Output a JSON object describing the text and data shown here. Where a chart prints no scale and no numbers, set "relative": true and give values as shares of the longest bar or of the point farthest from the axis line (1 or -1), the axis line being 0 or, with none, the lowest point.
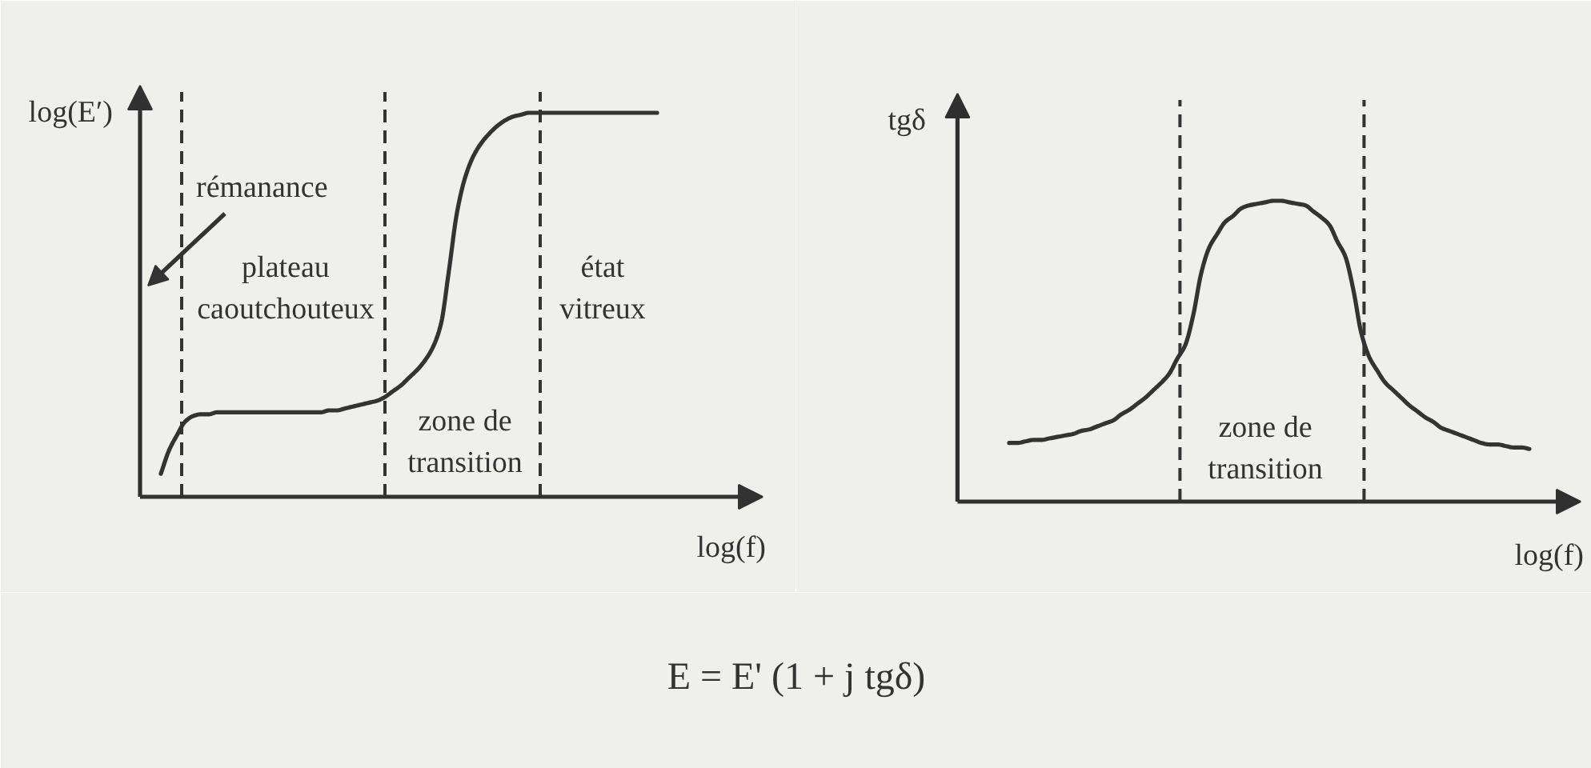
{
  "chart_data": [
    {
      "type": "line",
      "relative": true,
      "xlabel": "log(f)",
      "ylabel": "log(E′)",
      "categories": [
        null,
        null,
        null,
        null,
        null,
        null,
        null,
        null,
        null,
        null,
        null,
        null,
        null,
        null,
        null,
        null,
        null,
        null,
        null,
        null,
        null,
        null,
        null,
        null,
        null,
        null,
        null,
        null,
        null,
        null,
        null,
        null,
        null,
        null,
        null,
        null,
        null,
        null,
        null,
        null,
        null,
        null,
        null,
        null,
        null,
        null,
        null,
        null,
        null,
        null,
        null,
        null,
        null,
        null,
        null,
        null,
        null,
        null,
        null,
        null,
        null,
        null,
        null
      ],
      "series": [
        {
          "color": "#333333",
          "values": [
            0.06,
            0.12,
            0.16,
            0.195,
            0.21,
            0.215,
            0.215,
            0.22,
            0.22,
            0.22,
            0.22,
            0.22,
            0.22,
            0.22,
            0.22,
            0.22,
            0.22,
            0.22,
            0.22,
            0.22,
            0.22,
            0.225,
            0.225,
            0.23,
            0.235,
            0.24,
            0.245,
            0.25,
            0.26,
            0.275,
            0.29,
            0.31,
            0.33,
            0.355,
            0.39,
            0.45,
            0.59,
            0.74,
            0.83,
            0.885,
            0.92,
            0.945,
            0.965,
            0.98,
            0.99,
            0.995,
            1,
            1,
            1,
            1,
            1,
            1,
            1,
            1,
            1,
            1,
            1,
            1,
            1,
            1,
            1,
            1,
            1
          ]
        }
      ],
      "annotations": [
        "rémanance",
        "plateau caoutchouteux",
        "zone de transition",
        "état vitreux"
      ]
    },
    {
      "type": "line",
      "relative": true,
      "xlabel": "log(f)",
      "ylabel": "tgδ",
      "categories": [
        null,
        null,
        null,
        null,
        null,
        null,
        null,
        null,
        null,
        null,
        null,
        null,
        null,
        null,
        null,
        null,
        null,
        null,
        null,
        null,
        null,
        null,
        null,
        null,
        null,
        null,
        null,
        null,
        null,
        null,
        null,
        null,
        null,
        null,
        null,
        null,
        null,
        null,
        null,
        null,
        null,
        null,
        null,
        null,
        null,
        null,
        null,
        null,
        null,
        null,
        null,
        null,
        null,
        null,
        null,
        null,
        null,
        null,
        null,
        null,
        null,
        null,
        null,
        null,
        null,
        null
      ],
      "series": [
        {
          "color": "#333333",
          "values": [
            0.195,
            0.195,
            0.2,
            0.205,
            0.205,
            0.21,
            0.215,
            0.22,
            0.225,
            0.235,
            0.24,
            0.25,
            0.26,
            0.27,
            0.29,
            0.305,
            0.325,
            0.345,
            0.37,
            0.395,
            0.425,
            0.475,
            0.52,
            0.62,
            0.76,
            0.845,
            0.89,
            0.93,
            0.95,
            0.975,
            0.985,
            0.99,
            0.995,
            1,
            1,
            0.995,
            0.99,
            0.985,
            0.965,
            0.945,
            0.92,
            0.865,
            0.815,
            0.705,
            0.56,
            0.48,
            0.435,
            0.395,
            0.37,
            0.345,
            0.32,
            0.3,
            0.28,
            0.265,
            0.245,
            0.235,
            0.225,
            0.215,
            0.205,
            0.195,
            0.19,
            0.19,
            0.185,
            0.18,
            0.18,
            0.175
          ]
        }
      ],
      "annotations": [
        "zone de transition"
      ]
    },
    {
      "type": "other",
      "annotations": [
        "E = E' (1 + j tgδ)"
      ]
    }
  ]
}
